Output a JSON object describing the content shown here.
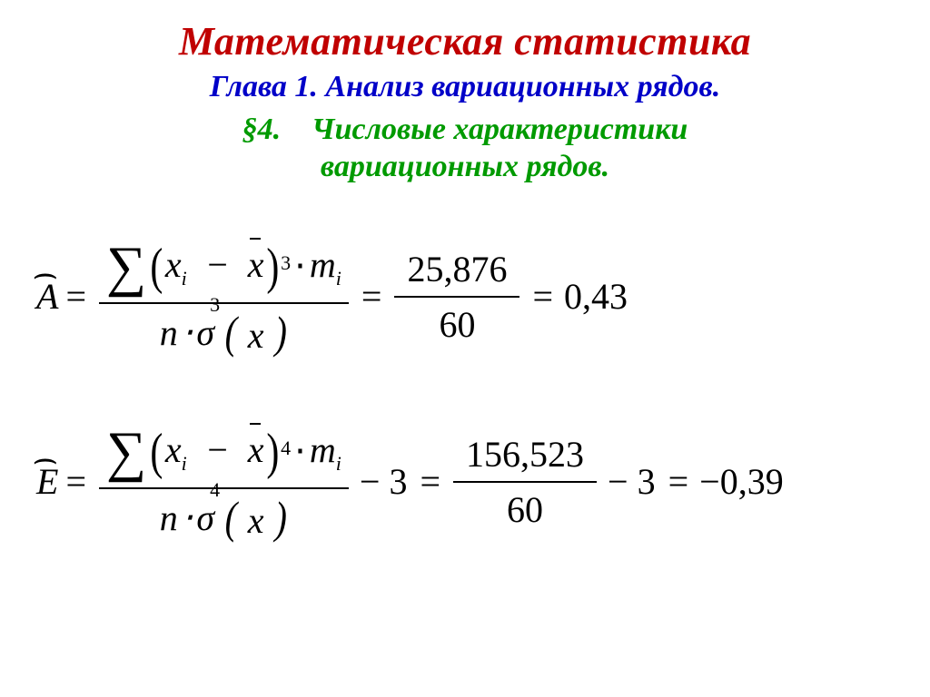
{
  "colors": {
    "title_main": "#c00000",
    "chapter": "#0000c8",
    "section": "#009a00",
    "text": "#000000",
    "background": "#ffffff"
  },
  "typography": {
    "family": "Times New Roman",
    "title_main_size_pt": 33,
    "chapter_size_pt": 26,
    "section_size_pt": 26,
    "formula_size_pt": 30,
    "style": "italic",
    "weight_headings": "bold"
  },
  "heading": {
    "main": "Математическая статистика",
    "chapter": "Глава 1. Анализ вариационных рядов.",
    "section_num": "§4.",
    "section_title_l1": "Числовые характеристики",
    "section_title_l2": "вариационных рядов."
  },
  "formula1": {
    "lhs_symbol": "A",
    "sum_power": "3",
    "sigma_power": "3",
    "mid_num": "25,876",
    "mid_den": "60",
    "result": "0,43",
    "var_x": "x",
    "var_m": "m",
    "sub_i": "i",
    "var_n": "n",
    "sigma_sym": "σ"
  },
  "formula2": {
    "lhs_symbol": "E",
    "sum_power": "4",
    "sigma_power": "4",
    "extra_term": "− 3",
    "mid_num": "156,523",
    "mid_den": "60",
    "extra_term2": "− 3",
    "result": "−0,39",
    "var_x": "x",
    "var_m": "m",
    "sub_i": "i",
    "var_n": "n",
    "sigma_sym": "σ"
  },
  "glyphs": {
    "sum": "∑",
    "eq": "=",
    "minus": "−",
    "cdot": "⋅"
  }
}
